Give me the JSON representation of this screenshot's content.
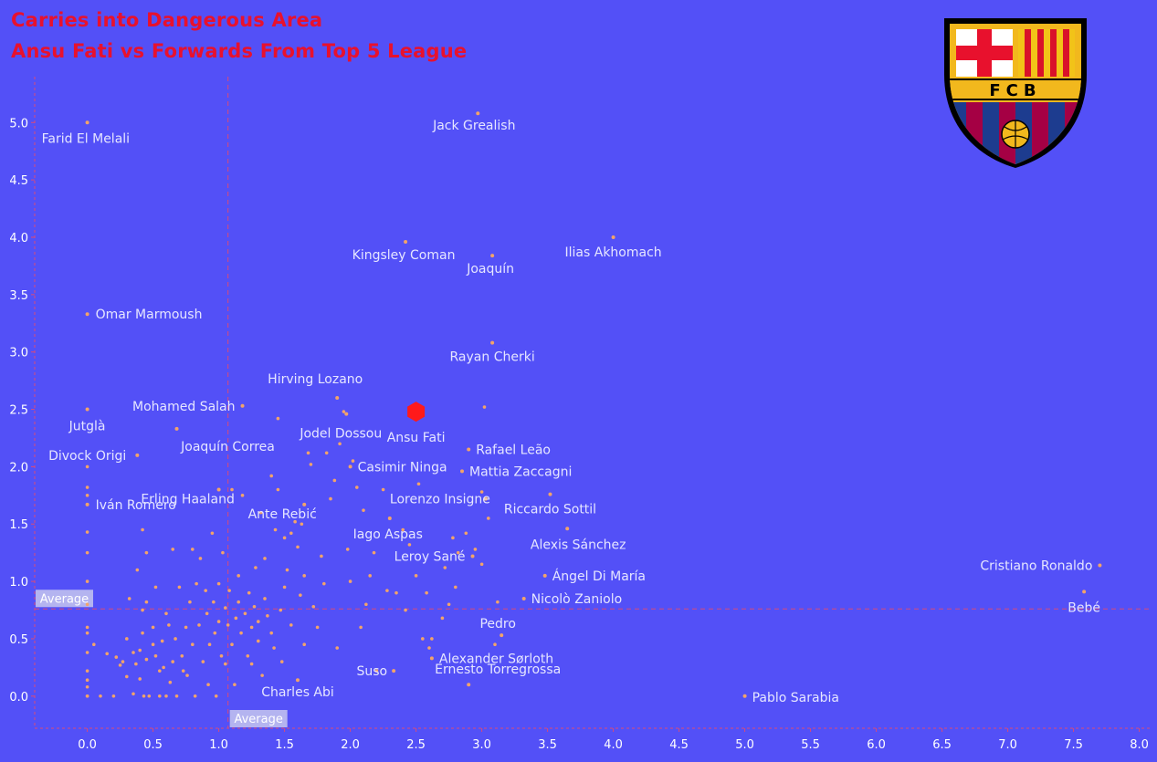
{
  "title_line1": "Carries into Dangerous Area",
  "title_line2": "Ansu Fati vs Forwards From Top 5 League",
  "logo": {
    "text": "FCB",
    "name": "fc-barcelona-crest"
  },
  "colors": {
    "background": "#5350f7",
    "title": "#e8112d",
    "point": "#f2a36a",
    "highlight": "#ff1a1a",
    "label": "#e6e6ff",
    "axis_text": "#ffffff",
    "reference_line": "#d84a7a",
    "average_box": "#b4b4f0"
  },
  "chart_data": {
    "type": "scatter",
    "title": "Carries into Dangerous Area",
    "subtitle": "Ansu Fati vs Forwards From Top 5 League",
    "xlabel": "",
    "ylabel": "",
    "xlim": [
      -0.4,
      8.1
    ],
    "ylim": [
      -0.28,
      5.4
    ],
    "x_ticks": [
      0.0,
      0.5,
      1.0,
      1.5,
      2.0,
      2.5,
      3.0,
      3.5,
      4.0,
      4.5,
      5.0,
      5.5,
      6.0,
      6.5,
      7.0,
      7.5,
      8.0
    ],
    "y_ticks": [
      0.0,
      0.5,
      1.0,
      1.5,
      2.0,
      2.5,
      3.0,
      3.5,
      4.0,
      4.5,
      5.0
    ],
    "grid": false,
    "reference_lines": [
      {
        "axis": "x",
        "value": 1.07,
        "label": "Average"
      },
      {
        "axis": "y",
        "value": 0.76,
        "label": "Average"
      }
    ],
    "highlight": {
      "name": "Ansu Fati",
      "x": 2.5,
      "y": 2.48
    },
    "labeled_points": [
      {
        "name": "Farid El Melali",
        "x": 0.0,
        "y": 5.0
      },
      {
        "name": "Jack Grealish",
        "x": 2.97,
        "y": 5.08
      },
      {
        "name": "Kingsley Coman",
        "x": 2.42,
        "y": 3.96
      },
      {
        "name": "Joaquín",
        "x": 3.08,
        "y": 3.84
      },
      {
        "name": "Ilias Akhomach",
        "x": 4.0,
        "y": 4.0
      },
      {
        "name": "Omar Marmoush",
        "x": 0.0,
        "y": 3.33
      },
      {
        "name": "Rayan Cherki",
        "x": 3.08,
        "y": 3.08
      },
      {
        "name": "Hirving Lozano",
        "x": 1.9,
        "y": 2.6
      },
      {
        "name": "Mohamed Salah",
        "x": 1.18,
        "y": 2.53
      },
      {
        "name": "Jutglà",
        "x": 0.0,
        "y": 2.5
      },
      {
        "name": "Jodel Dossou",
        "x": 1.97,
        "y": 2.46
      },
      {
        "name": "Joaquín Correa",
        "x": 0.68,
        "y": 2.33
      },
      {
        "name": "Rafael Leão",
        "x": 2.9,
        "y": 2.15
      },
      {
        "name": "Divock Origi",
        "x": 0.38,
        "y": 2.1
      },
      {
        "name": "Casimir Ninga",
        "x": 2.0,
        "y": 2.0
      },
      {
        "name": "Mattia Zaccagni",
        "x": 2.85,
        "y": 1.96
      },
      {
        "name": "Erling Haaland",
        "x": 1.0,
        "y": 1.8
      },
      {
        "name": "Lorenzo Insigne",
        "x": 3.03,
        "y": 1.72
      },
      {
        "name": "Riccardo Sottil",
        "x": 3.52,
        "y": 1.76
      },
      {
        "name": "Iván Romero",
        "x": 0.0,
        "y": 1.67
      },
      {
        "name": "Ante Rebić",
        "x": 1.65,
        "y": 1.67
      },
      {
        "name": "Iago Aspas",
        "x": 2.3,
        "y": 1.55
      },
      {
        "name": "Alexis Sánchez",
        "x": 3.65,
        "y": 1.46
      },
      {
        "name": "Leroy Sané",
        "x": 2.93,
        "y": 1.22
      },
      {
        "name": "Cristiano Ronaldo",
        "x": 7.7,
        "y": 1.14
      },
      {
        "name": "Ángel Di María",
        "x": 3.48,
        "y": 1.05
      },
      {
        "name": "Bebé",
        "x": 7.58,
        "y": 0.91
      },
      {
        "name": "Nicolò Zaniolo",
        "x": 3.32,
        "y": 0.85
      },
      {
        "name": "Pedro",
        "x": 3.15,
        "y": 0.53
      },
      {
        "name": "Alexander Sørloth",
        "x": 2.62,
        "y": 0.33
      },
      {
        "name": "Suso",
        "x": 2.33,
        "y": 0.22
      },
      {
        "name": "Charles Abi",
        "x": 1.6,
        "y": 0.14
      },
      {
        "name": "Ernesto Torregrossa",
        "x": 2.9,
        "y": 0.1
      },
      {
        "name": "Pablo Sarabia",
        "x": 5.0,
        "y": 0.0
      }
    ],
    "other_points": [
      [
        0,
        0
      ],
      [
        0,
        0
      ],
      [
        0,
        0.08
      ],
      [
        0,
        0.14
      ],
      [
        0,
        0.22
      ],
      [
        0,
        0.38
      ],
      [
        0,
        0.55
      ],
      [
        0,
        0.6
      ],
      [
        0,
        0.8
      ],
      [
        0,
        1.0
      ],
      [
        0,
        1.25
      ],
      [
        0,
        1.43
      ],
      [
        0,
        1.75
      ],
      [
        0,
        1.82
      ],
      [
        0,
        2.0
      ],
      [
        0.05,
        0.45
      ],
      [
        0.1,
        0
      ],
      [
        0.15,
        0.37
      ],
      [
        0.2,
        0
      ],
      [
        0.22,
        0.34
      ],
      [
        0.25,
        0.27
      ],
      [
        0.27,
        0.3
      ],
      [
        0.3,
        0.5
      ],
      [
        0.3,
        0.17
      ],
      [
        0.32,
        0.85
      ],
      [
        0.35,
        0.38
      ],
      [
        0.35,
        0.02
      ],
      [
        0.37,
        0.28
      ],
      [
        0.38,
        1.1
      ],
      [
        0.4,
        0.4
      ],
      [
        0.4,
        0.15
      ],
      [
        0.42,
        0.75
      ],
      [
        0.42,
        0.55
      ],
      [
        0.42,
        1.45
      ],
      [
        0.43,
        0
      ],
      [
        0.45,
        0.32
      ],
      [
        0.45,
        0.82
      ],
      [
        0.45,
        1.25
      ],
      [
        0.47,
        0
      ],
      [
        0.5,
        0.6
      ],
      [
        0.5,
        0.45
      ],
      [
        0.52,
        0.35
      ],
      [
        0.52,
        0.95
      ],
      [
        0.55,
        0.22
      ],
      [
        0.55,
        0
      ],
      [
        0.57,
        0.48
      ],
      [
        0.58,
        0.25
      ],
      [
        0.6,
        0.72
      ],
      [
        0.6,
        0
      ],
      [
        0.62,
        0.62
      ],
      [
        0.63,
        0.12
      ],
      [
        0.65,
        1.28
      ],
      [
        0.65,
        0.3
      ],
      [
        0.67,
        0.5
      ],
      [
        0.68,
        0
      ],
      [
        0.7,
        0.95
      ],
      [
        0.72,
        0.35
      ],
      [
        0.73,
        0.22
      ],
      [
        0.75,
        0.6
      ],
      [
        0.76,
        0.18
      ],
      [
        0.78,
        0.82
      ],
      [
        0.8,
        0.45
      ],
      [
        0.8,
        1.28
      ],
      [
        0.82,
        0
      ],
      [
        0.83,
        0.98
      ],
      [
        0.85,
        0.62
      ],
      [
        0.86,
        1.2
      ],
      [
        0.88,
        0.3
      ],
      [
        0.9,
        0.92
      ],
      [
        0.91,
        0.72
      ],
      [
        0.92,
        0.1
      ],
      [
        0.93,
        0.45
      ],
      [
        0.95,
        1.42
      ],
      [
        0.96,
        0.82
      ],
      [
        0.97,
        0.55
      ],
      [
        0.98,
        0
      ],
      [
        1.0,
        0.98
      ],
      [
        1.0,
        0.65
      ],
      [
        1.02,
        0.35
      ],
      [
        1.03,
        1.25
      ],
      [
        1.05,
        0.77
      ],
      [
        1.05,
        0.28
      ],
      [
        1.07,
        0.62
      ],
      [
        1.08,
        0.92
      ],
      [
        1.1,
        1.8
      ],
      [
        1.1,
        0.45
      ],
      [
        1.12,
        0.1
      ],
      [
        1.13,
        0.68
      ],
      [
        1.15,
        0.82
      ],
      [
        1.15,
        1.05
      ],
      [
        1.17,
        0.55
      ],
      [
        1.18,
        1.75
      ],
      [
        1.2,
        0.72
      ],
      [
        1.22,
        0.35
      ],
      [
        1.23,
        0.9
      ],
      [
        1.25,
        0.6
      ],
      [
        1.25,
        0.28
      ],
      [
        1.27,
        0.78
      ],
      [
        1.28,
        1.12
      ],
      [
        1.3,
        0.65
      ],
      [
        1.3,
        0.48
      ],
      [
        1.32,
        1.6
      ],
      [
        1.33,
        0.18
      ],
      [
        1.35,
        0.85
      ],
      [
        1.35,
        1.2
      ],
      [
        1.37,
        0.7
      ],
      [
        1.4,
        1.92
      ],
      [
        1.4,
        0.55
      ],
      [
        1.42,
        0.42
      ],
      [
        1.43,
        1.45
      ],
      [
        1.45,
        2.42
      ],
      [
        1.45,
        1.8
      ],
      [
        1.47,
        0.75
      ],
      [
        1.48,
        0.3
      ],
      [
        1.5,
        1.38
      ],
      [
        1.5,
        0.95
      ],
      [
        1.52,
        1.1
      ],
      [
        1.55,
        1.42
      ],
      [
        1.55,
        0.62
      ],
      [
        1.58,
        1.52
      ],
      [
        1.6,
        1.3
      ],
      [
        1.62,
        0.88
      ],
      [
        1.63,
        1.5
      ],
      [
        1.65,
        1.05
      ],
      [
        1.65,
        0.45
      ],
      [
        1.68,
        2.12
      ],
      [
        1.7,
        2.02
      ],
      [
        1.72,
        0.78
      ],
      [
        1.75,
        0.6
      ],
      [
        1.78,
        1.22
      ],
      [
        1.8,
        0.98
      ],
      [
        1.82,
        2.12
      ],
      [
        1.85,
        1.72
      ],
      [
        1.88,
        1.88
      ],
      [
        1.9,
        0.42
      ],
      [
        1.92,
        2.2
      ],
      [
        1.95,
        2.48
      ],
      [
        1.98,
        1.28
      ],
      [
        2.0,
        1.0
      ],
      [
        2.02,
        2.05
      ],
      [
        2.05,
        1.82
      ],
      [
        2.08,
        0.6
      ],
      [
        2.1,
        1.62
      ],
      [
        2.12,
        0.8
      ],
      [
        2.15,
        1.05
      ],
      [
        2.18,
        1.25
      ],
      [
        2.2,
        0.22
      ],
      [
        2.25,
        1.8
      ],
      [
        2.28,
        0.92
      ],
      [
        2.3,
        1.55
      ],
      [
        2.35,
        0.9
      ],
      [
        2.4,
        1.45
      ],
      [
        2.42,
        0.75
      ],
      [
        2.45,
        1.32
      ],
      [
        2.5,
        1.05
      ],
      [
        2.52,
        1.85
      ],
      [
        2.55,
        0.5
      ],
      [
        2.58,
        0.9
      ],
      [
        2.6,
        0.42
      ],
      [
        2.62,
        0.5
      ],
      [
        2.7,
        0.68
      ],
      [
        2.72,
        1.12
      ],
      [
        2.75,
        0.8
      ],
      [
        2.78,
        1.38
      ],
      [
        2.8,
        0.95
      ],
      [
        2.82,
        1.25
      ],
      [
        2.88,
        1.42
      ],
      [
        2.95,
        1.28
      ],
      [
        3.0,
        1.15
      ],
      [
        3.0,
        1.78
      ],
      [
        3.02,
        2.52
      ],
      [
        3.05,
        1.55
      ],
      [
        3.1,
        0.45
      ],
      [
        3.12,
        0.82
      ]
    ]
  }
}
